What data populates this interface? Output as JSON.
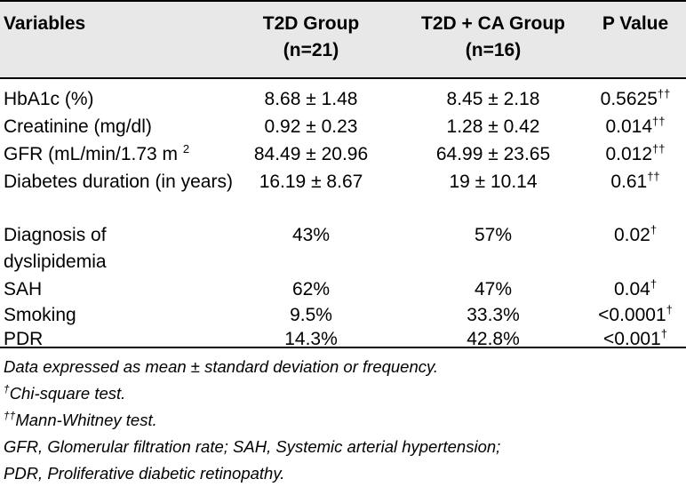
{
  "table": {
    "headers": {
      "variables": "Variables",
      "group1_line1": "T2D Group",
      "group1_line2": "(n=21)",
      "group2_line1": "T2D + CA Group",
      "group2_line2": "(n=16)",
      "pvalue": "P Value"
    },
    "rows": [
      {
        "variable": "HbA1c (%)",
        "g1": "8.68 ± 1.48",
        "g2": "8.45 ± 2.18",
        "p": "0.5625",
        "p_mark": "††"
      },
      {
        "variable": "Creatinine (mg/dl)",
        "g1": "0.92 ± 0.23",
        "g2": "1.28 ± 0.42",
        "p": "0.014",
        "p_mark": "††"
      },
      {
        "variable": "GFR (mL/min/1.73 m ",
        "variable_sup": "2",
        "g1": "84.49 ± 20.96",
        "g2": "64.99 ± 23.65",
        "p": "0.012",
        "p_mark": "††"
      },
      {
        "variable": "Diabetes duration (in years)",
        "g1": "16.19 ± 8.67",
        "g2": "19 ± 10.14",
        "p": "0.61",
        "p_mark": "††"
      },
      {
        "variable": "Diagnosis of dyslipidemia",
        "g1": "43%",
        "g2": "57%",
        "p": "0.02",
        "p_mark": "†"
      },
      {
        "variable": "SAH",
        "g1": "62%",
        "g2": "47%",
        "p": "0.04",
        "p_mark": "†"
      },
      {
        "variable": "Smoking",
        "g1": "9.5%",
        "g2": "33.3%",
        "p": "<0.0001",
        "p_mark": "†"
      },
      {
        "variable": "PDR",
        "g1": "14.3%",
        "g2": "42.8%",
        "p": "<0.001",
        "p_mark": "†"
      }
    ]
  },
  "footnotes": {
    "line1": "Data expressed as mean ± standard deviation or frequency.",
    "line2_mark": "†",
    "line2": "Chi-square test.",
    "line3_mark": "††",
    "line3": "Mann-Whitney test.",
    "line4": "GFR, Glomerular filtration rate; SAH, Systemic arterial hypertension;",
    "line5": "PDR, Proliferative diabetic retinopathy."
  }
}
